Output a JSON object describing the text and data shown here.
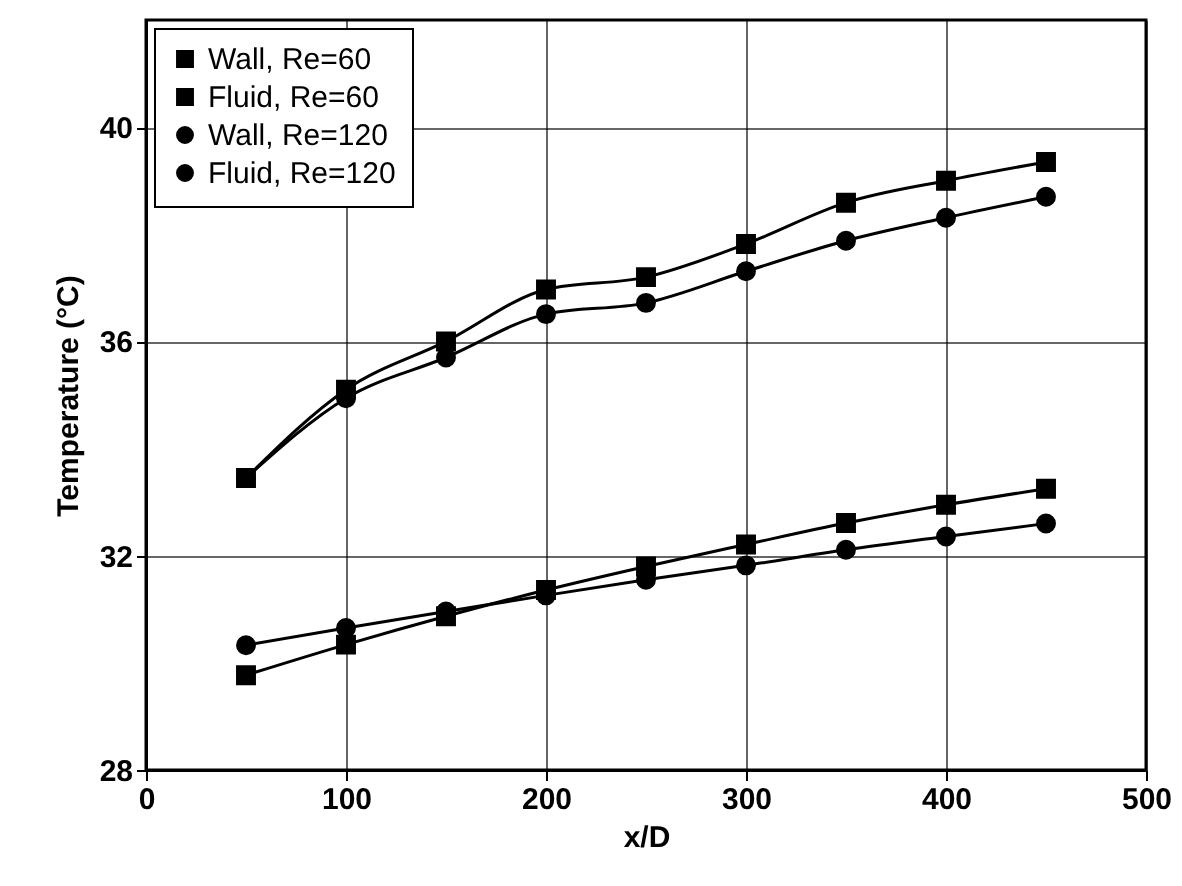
{
  "chart_data": {
    "type": "line",
    "xlabel": "x/D",
    "ylabel": "Temperature (°C)",
    "x": [
      50,
      100,
      150,
      200,
      250,
      300,
      350,
      400,
      450
    ],
    "series": [
      {
        "name": "Wall, Re=60",
        "color": "#000000",
        "marker": "square",
        "values": [
          33.45,
          35.1,
          36.0,
          36.97,
          37.2,
          37.82,
          38.59,
          39.0,
          39.35
        ]
      },
      {
        "name": "Fluid, Re=60",
        "color": "#000000",
        "marker": "square",
        "values": [
          29.77,
          30.34,
          30.87,
          31.36,
          31.8,
          32.21,
          32.61,
          32.95,
          33.25
        ]
      },
      {
        "name": "Wall, Re=120",
        "color": "#000000",
        "marker": "circle",
        "values": [
          33.45,
          34.94,
          35.7,
          36.51,
          36.72,
          37.31,
          37.88,
          38.31,
          38.7
        ]
      },
      {
        "name": "Fluid, Re=120",
        "color": "#000000",
        "marker": "circle",
        "values": [
          30.33,
          30.65,
          30.96,
          31.26,
          31.55,
          31.82,
          32.11,
          32.36,
          32.6
        ]
      }
    ],
    "xlim": [
      0,
      500
    ],
    "xticks": [
      0,
      100,
      200,
      300,
      400,
      500
    ],
    "ylim": [
      28,
      42
    ],
    "yticks": [
      28,
      32,
      36,
      40
    ],
    "grid": true,
    "legend": "top left",
    "line_style": "solid"
  }
}
